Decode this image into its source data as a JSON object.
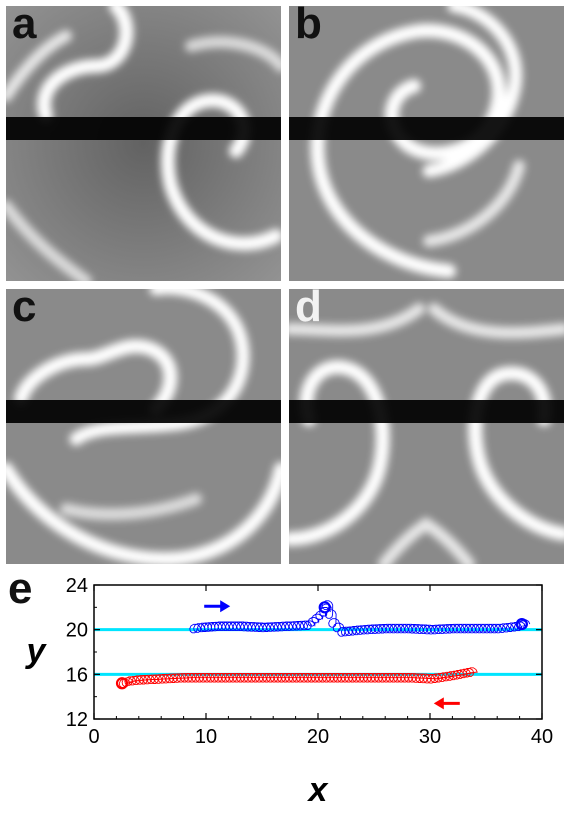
{
  "panels": [
    {
      "id": "a",
      "label": "a"
    },
    {
      "id": "b",
      "label": "b"
    },
    {
      "id": "c",
      "label": "c"
    },
    {
      "id": "d",
      "label": "d"
    }
  ],
  "colors": {
    "background_gray": "#8c8c8c",
    "wave_white": "#ffffff",
    "band_black": "#000000",
    "series_blue": "#0000ff",
    "series_red": "#ff0000",
    "reference_line": "#00e5ff"
  },
  "chart_data": {
    "type": "line",
    "panel_label": "e",
    "xlabel": "x",
    "ylabel": "y",
    "xlim": [
      0,
      40
    ],
    "ylim": [
      12,
      24
    ],
    "xticks": [
      0,
      10,
      20,
      30,
      40
    ],
    "yticks": [
      12,
      16,
      20,
      24
    ],
    "reference_lines": [
      20,
      16
    ],
    "arrows": [
      {
        "direction": "right",
        "x": 11,
        "y": 22.1,
        "color": "#0000ff"
      },
      {
        "direction": "left",
        "x": 31.5,
        "y": 13.4,
        "color": "#ff0000"
      }
    ],
    "series": [
      {
        "color": "#0000ff",
        "x": [
          8.8,
          9.5,
          11,
          13,
          15,
          17,
          19,
          20.4,
          20.6,
          21.2,
          22,
          24,
          26,
          28,
          30,
          32,
          34,
          36,
          37.8,
          38.2
        ],
        "y": [
          20.1,
          20.2,
          20.3,
          20.3,
          20.2,
          20.3,
          20.4,
          21.6,
          22.2,
          20.6,
          19.8,
          20.0,
          20.1,
          20.1,
          20.0,
          20.1,
          20.1,
          20.1,
          20.3,
          20.5
        ]
      },
      {
        "color": "#ff0000",
        "x": [
          33.5,
          32,
          30,
          28,
          26,
          24,
          22,
          20,
          18,
          16,
          14,
          12,
          10,
          8,
          6,
          4,
          3,
          2.5
        ],
        "y": [
          16.2,
          15.9,
          15.6,
          15.7,
          15.7,
          15.7,
          15.7,
          15.7,
          15.7,
          15.7,
          15.7,
          15.7,
          15.7,
          15.7,
          15.6,
          15.5,
          15.4,
          15.2
        ]
      }
    ]
  }
}
